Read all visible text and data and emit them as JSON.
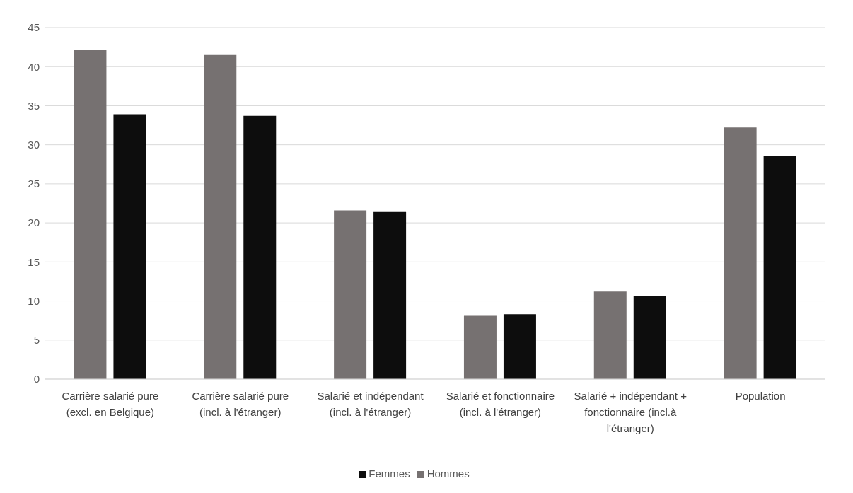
{
  "chart_data": {
    "type": "bar",
    "categories": [
      "Carrière salarié pure (excl. en Belgique)",
      "Carrière salarié pure (incl. à l'étranger)",
      "Salarié et indépendant (incl. à l'étranger)",
      "Salarié et fonctionnaire (incl. à l'étranger)",
      "Salarié + indépendant + fonctionnaire (incl.à l'étranger)",
      "Population"
    ],
    "series": [
      {
        "name": "Hommes",
        "color": "#767171",
        "values": [
          42.1,
          41.5,
          21.6,
          8.1,
          11.2,
          32.2
        ]
      },
      {
        "name": "Femmes",
        "color": "#0d0d0d",
        "values": [
          33.9,
          33.7,
          21.4,
          8.3,
          10.6,
          28.6
        ]
      }
    ],
    "ylim": [
      0,
      45
    ],
    "yticks": [
      0,
      5,
      10,
      15,
      20,
      25,
      30,
      35,
      40,
      45
    ],
    "grid": "y",
    "legend": "bottom"
  }
}
